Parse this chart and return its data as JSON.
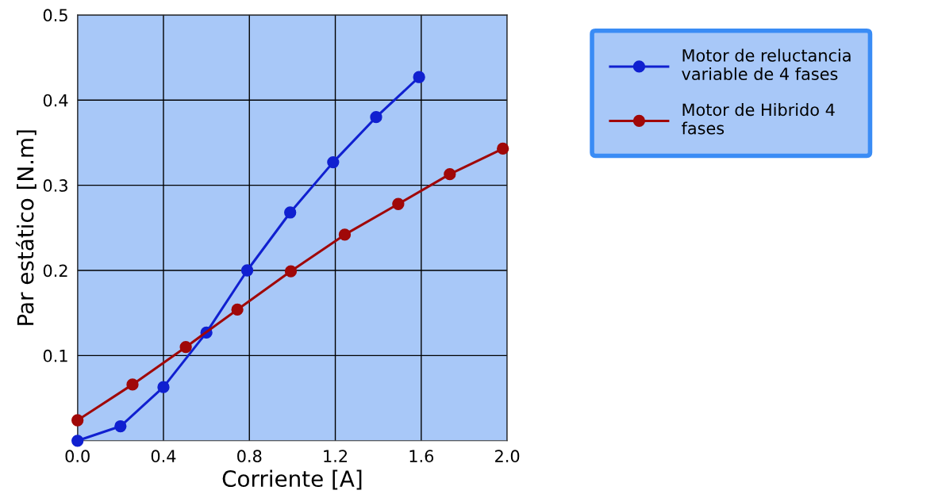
{
  "chart_data": {
    "type": "line",
    "xlabel": "Corriente [A]",
    "ylabel": "Par estático [N.m]",
    "xlim": [
      0,
      2.0
    ],
    "ylim": [
      0,
      0.5
    ],
    "xticks": [
      {
        "value": 0,
        "label": "0.0"
      },
      0.4,
      0.8,
      1.2,
      1.6,
      {
        "value": 2.0,
        "label": "2.0"
      }
    ],
    "yticks": [
      0.1,
      0.2,
      0.3,
      0.4,
      0.5
    ],
    "grid": true,
    "legend": "top right",
    "marker": "circle",
    "line_style": "solid",
    "series": [
      {
        "name": "Motor de reluctancia\nvariable de 4 fases",
        "color": "#1020d0",
        "x": [
          0.0,
          0.2,
          0.4,
          0.6,
          0.79,
          0.99,
          1.19,
          1.39,
          1.59
        ],
        "values": [
          0.0,
          0.017,
          0.063,
          0.127,
          0.2,
          0.268,
          0.327,
          0.38,
          0.427
        ]
      },
      {
        "name": "Motor de Hibrido 4\nfases",
        "color": "#a00808",
        "x": [
          0.0,
          0.256,
          0.504,
          0.744,
          0.993,
          1.244,
          1.493,
          1.733,
          1.98
        ],
        "values": [
          0.024,
          0.066,
          0.11,
          0.154,
          0.199,
          0.242,
          0.278,
          0.313,
          0.343
        ]
      }
    ]
  }
}
